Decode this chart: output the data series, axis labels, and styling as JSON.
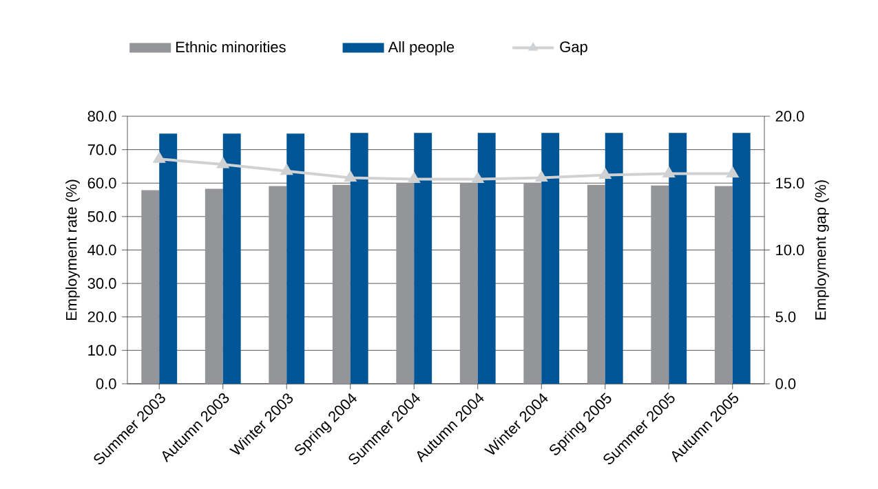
{
  "chart_data": {
    "type": "bar",
    "ylabel": "Employment rate (%)",
    "y2label": "Employment gap (%)",
    "categories": [
      "Summer 2003",
      "Autumn 2003",
      "Winter 2003",
      "Spring 2004",
      "Summer 2004",
      "Autumn 2004",
      "Winter 2004",
      "Spring 2005",
      "Summer 2005",
      "Autumn 2005"
    ],
    "series": [
      {
        "name": "Ethnic minorities",
        "color": "#939598",
        "values": [
          57.9,
          58.3,
          59.1,
          59.5,
          60.0,
          60.0,
          60.0,
          59.5,
          59.3,
          59.1
        ]
      },
      {
        "name": "All people",
        "color": "#005596",
        "values": [
          74.8,
          74.8,
          74.8,
          75.0,
          75.0,
          75.0,
          75.0,
          75.0,
          75.0,
          75.0
        ]
      },
      {
        "name": "Gap",
        "color": "#d0d1d3",
        "type": "line",
        "axis": "y2",
        "marker": "triangle",
        "values": [
          16.8,
          16.4,
          15.9,
          15.4,
          15.3,
          15.3,
          15.4,
          15.6,
          15.7,
          15.7
        ]
      }
    ],
    "ylim": [
      0,
      80
    ],
    "yticks": [
      {
        "value": 0,
        "label": "0.0"
      },
      {
        "value": 10,
        "label": "10.0"
      },
      {
        "value": 20,
        "label": "20.0"
      },
      {
        "value": 30,
        "label": "30.0"
      },
      {
        "value": 40,
        "label": "40.0"
      },
      {
        "value": 50,
        "label": "50.0"
      },
      {
        "value": 60,
        "label": "60.0"
      },
      {
        "value": 70,
        "label": "70.0"
      },
      {
        "value": 80,
        "label": "80.0"
      }
    ],
    "y2lim": [
      0,
      20
    ],
    "y2ticks": [
      {
        "value": 0,
        "label": "0.0"
      },
      {
        "value": 5,
        "label": "5.0"
      },
      {
        "value": 10,
        "label": "10.0"
      },
      {
        "value": 15,
        "label": "15.0"
      },
      {
        "value": 20,
        "label": "20.0"
      }
    ],
    "grid": "y",
    "legend": "top"
  }
}
